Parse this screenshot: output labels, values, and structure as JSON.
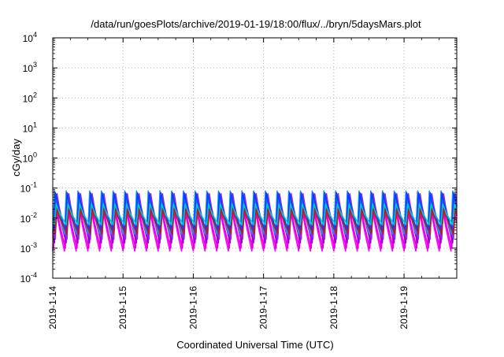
{
  "chart_data": {
    "type": "line",
    "title": "/data/run/goesPlots/archive/2019-01-19/18:00/flux/../bryn/5daysMars.plot",
    "xlabel": "Coordinated Universal Time (UTC)",
    "ylabel": "cGy/day",
    "yscale": "log",
    "ylim": [
      0.0001,
      10000
    ],
    "y_ticks": [
      {
        "base": "10",
        "exp": "4"
      },
      {
        "base": "10",
        "exp": "3"
      },
      {
        "base": "10",
        "exp": "2"
      },
      {
        "base": "10",
        "exp": "1"
      },
      {
        "base": "10",
        "exp": "0"
      },
      {
        "base": "10",
        "exp": "-1"
      },
      {
        "base": "10",
        "exp": "-2"
      },
      {
        "base": "10",
        "exp": "-3"
      },
      {
        "base": "10",
        "exp": "-4"
      }
    ],
    "xlim": [
      "2019-01-14",
      "2019-01-19 18:00"
    ],
    "x_ticks": [
      "2019-1-14",
      "2019-1-15",
      "2019-1-16",
      "2019-1-17",
      "2019-1-18",
      "2019-1-19"
    ],
    "grid": true,
    "oscillation": {
      "period_days": 0.1667,
      "peak_max": 0.08,
      "trough_min": 0.0008
    },
    "series": [
      {
        "color": "#ff00ff",
        "peak": 0.05,
        "trough": 0.0008
      },
      {
        "color": "#e000e0",
        "peak": 0.045,
        "trough": 0.001
      },
      {
        "color": "#9400d3",
        "peak": 0.06,
        "trough": 0.0015
      },
      {
        "color": "#8a2be2",
        "peak": 0.065,
        "trough": 0.002
      },
      {
        "color": "#1e90ff",
        "peak": 0.08,
        "trough": 0.003
      },
      {
        "color": "#0040ff",
        "peak": 0.07,
        "trough": 0.004
      },
      {
        "color": "#00c8c8",
        "peak": 0.03,
        "trough": 0.006
      },
      {
        "color": "#b22222",
        "peak": 0.02,
        "trough": 0.003
      }
    ]
  }
}
